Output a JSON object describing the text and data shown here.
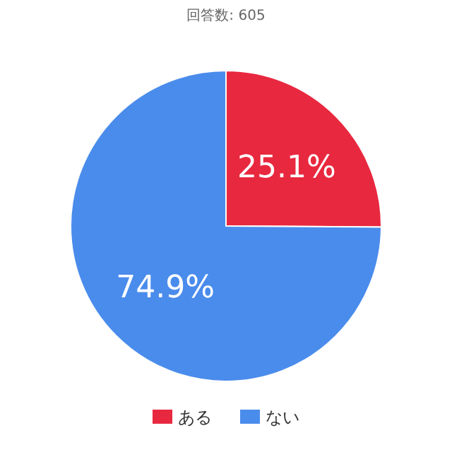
{
  "chart_data": {
    "type": "pie",
    "title": "回答数: 605",
    "categories": [
      "ある",
      "ない"
    ],
    "values": [
      25.1,
      74.9
    ],
    "value_labels": [
      "25.1%",
      "74.9%"
    ],
    "colors": [
      "#e8283f",
      "#4a8cec"
    ],
    "legend": "bottom"
  }
}
